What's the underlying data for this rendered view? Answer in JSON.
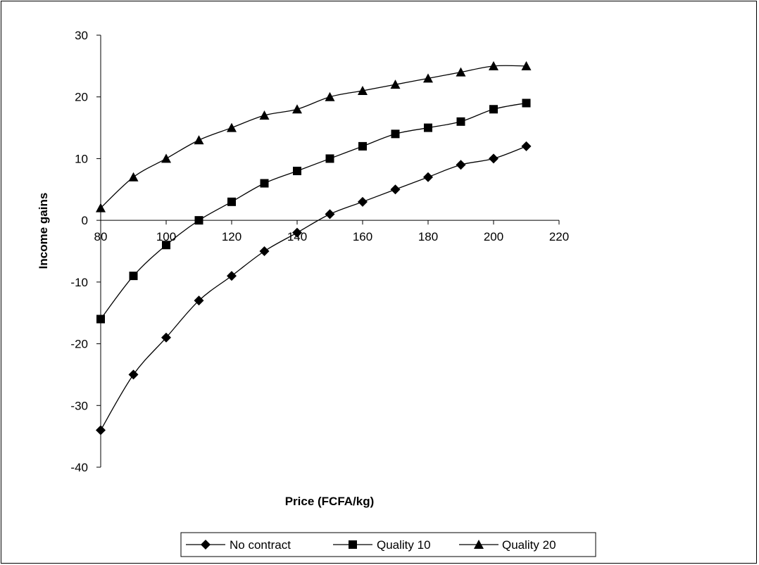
{
  "chart_data": {
    "type": "line",
    "title": "",
    "xlabel": "Price (FCFA/kg)",
    "ylabel": "Income gains",
    "xlim": [
      80,
      220
    ],
    "ylim": [
      -40,
      30
    ],
    "xticks": [
      80,
      100,
      120,
      140,
      160,
      180,
      200,
      220
    ],
    "yticks": [
      30,
      20,
      10,
      0,
      -10,
      -20,
      -30,
      -40
    ],
    "x": [
      80,
      90,
      100,
      110,
      120,
      130,
      140,
      150,
      160,
      170,
      180,
      190,
      200,
      210
    ],
    "grid": false,
    "legend_position": "bottom",
    "series": [
      {
        "name": "No contract",
        "marker": "diamond",
        "values": [
          -34,
          -25,
          -19,
          -13,
          -9,
          -5,
          -2,
          1,
          3,
          5,
          7,
          9,
          10,
          12
        ]
      },
      {
        "name": "Quality 10",
        "marker": "square",
        "values": [
          -16,
          -9,
          -4,
          0,
          3,
          6,
          8,
          10,
          12,
          14,
          15,
          16,
          18,
          19
        ]
      },
      {
        "name": "Quality 20",
        "marker": "triangle",
        "values": [
          2,
          7,
          10,
          13,
          15,
          17,
          18,
          20,
          21,
          22,
          23,
          24,
          25,
          25
        ]
      }
    ],
    "colors": {
      "line": "#000000",
      "marker": "#000000"
    }
  }
}
